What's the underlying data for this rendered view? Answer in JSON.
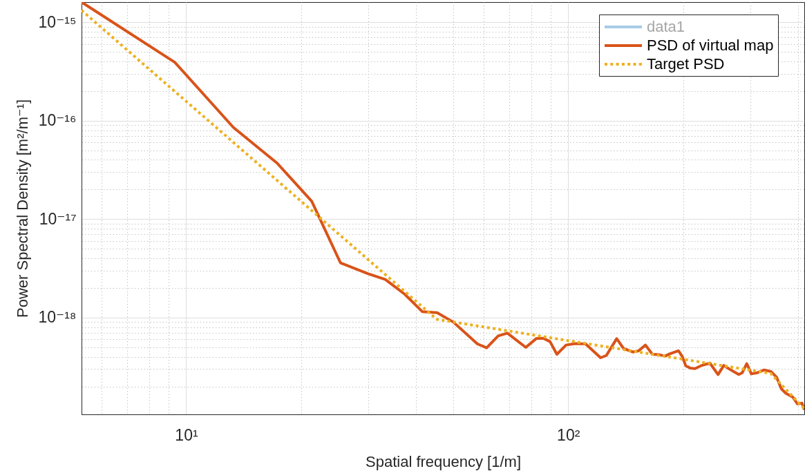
{
  "chart_data": {
    "type": "line",
    "xlabel": "Spatial frequency [1/m]",
    "ylabel": "Power Spectral Density [m²/m⁻¹]",
    "log": "xy",
    "grid": true,
    "legend": "top right",
    "xlim": [
      5.32,
      415.3
    ],
    "ylim": [
      1.04e-19,
      1.6e-15
    ],
    "xticks": [
      {
        "value": 6,
        "label": null
      },
      {
        "value": 7,
        "label": null
      },
      {
        "value": 8,
        "label": null
      },
      {
        "value": 9,
        "label": null
      },
      {
        "value": 10,
        "label": "10¹"
      },
      {
        "value": 20,
        "label": null
      },
      {
        "value": 30,
        "label": null
      },
      {
        "value": 40,
        "label": null
      },
      {
        "value": 50,
        "label": null
      },
      {
        "value": 60,
        "label": null
      },
      {
        "value": 70,
        "label": null
      },
      {
        "value": 80,
        "label": null
      },
      {
        "value": 90,
        "label": null
      },
      {
        "value": 100,
        "label": "10²"
      },
      {
        "value": 200,
        "label": null
      },
      {
        "value": 300,
        "label": null
      },
      {
        "value": 400,
        "label": null
      }
    ],
    "yticks": [
      {
        "value": 2e-19,
        "label": null
      },
      {
        "value": 3e-19,
        "label": null
      },
      {
        "value": 4e-19,
        "label": null
      },
      {
        "value": 5e-19,
        "label": null
      },
      {
        "value": 6e-19,
        "label": null
      },
      {
        "value": 7e-19,
        "label": null
      },
      {
        "value": 8e-19,
        "label": null
      },
      {
        "value": 9e-19,
        "label": null
      },
      {
        "value": 1e-18,
        "label": "10⁻¹⁸"
      },
      {
        "value": 2e-18,
        "label": null
      },
      {
        "value": 3e-18,
        "label": null
      },
      {
        "value": 4e-18,
        "label": null
      },
      {
        "value": 5e-18,
        "label": null
      },
      {
        "value": 6e-18,
        "label": null
      },
      {
        "value": 7e-18,
        "label": null
      },
      {
        "value": 8e-18,
        "label": null
      },
      {
        "value": 9e-18,
        "label": null
      },
      {
        "value": 1e-17,
        "label": "10⁻¹⁷"
      },
      {
        "value": 2e-17,
        "label": null
      },
      {
        "value": 3e-17,
        "label": null
      },
      {
        "value": 4e-17,
        "label": null
      },
      {
        "value": 5e-17,
        "label": null
      },
      {
        "value": 6e-17,
        "label": null
      },
      {
        "value": 7e-17,
        "label": null
      },
      {
        "value": 8e-17,
        "label": null
      },
      {
        "value": 9e-17,
        "label": null
      },
      {
        "value": 1e-16,
        "label": "10⁻¹⁶"
      },
      {
        "value": 2e-16,
        "label": null
      },
      {
        "value": 3e-16,
        "label": null
      },
      {
        "value": 4e-16,
        "label": null
      },
      {
        "value": 5e-16,
        "label": null
      },
      {
        "value": 6e-16,
        "label": null
      },
      {
        "value": 7e-16,
        "label": null
      },
      {
        "value": 8e-16,
        "label": null
      },
      {
        "value": 9e-16,
        "label": null
      },
      {
        "value": 1e-15,
        "label": "10⁻¹⁵"
      }
    ],
    "series": [
      {
        "name": "data1",
        "color": "#a6cbe6",
        "line_style": "solid"
      },
      {
        "name": "PSD of virtual map",
        "color": "#d95319",
        "line_style": "solid",
        "x": [
          5.32,
          9.33,
          13.29,
          17.3,
          21.31,
          25.34,
          29.94,
          33.21,
          37.38,
          41.49,
          45.39,
          50.04,
          57.88,
          61.18,
          65.58,
          69.33,
          77.47,
          82.46,
          86.0,
          89.65,
          93.43,
          98.76,
          104.4,
          111.1,
          121.6,
          125.9,
          134.0,
          139.7,
          147.7,
          152.9,
          159.4,
          166.2,
          173.3,
          179.3,
          184.5,
          194.5,
          199.1,
          203.2,
          208.9,
          214.8,
          224.0,
          235.0,
          246.9,
          255.6,
          264.7,
          279.7,
          285.6,
          293.6,
          301.8,
          312.5,
          325.8,
          339.7,
          351.6,
          361.6,
          371.7,
          387.4,
          398.4,
          409.6,
          415.3
        ],
        "values": [
          1.6e-15,
          3.92e-16,
          8.53e-17,
          3.7e-17,
          1.52e-17,
          3.6e-18,
          2.79e-18,
          2.44e-18,
          1.72e-18,
          1.15e-18,
          1.12e-18,
          9e-19,
          5.4e-19,
          4.93e-19,
          6.52e-19,
          6.95e-19,
          4.98e-19,
          6.11e-19,
          6.18e-19,
          5.7e-19,
          4.24e-19,
          5.26e-19,
          5.44e-19,
          5.4e-19,
          3.91e-19,
          4.12e-19,
          6.11e-19,
          4.85e-19,
          4.47e-19,
          4.6e-19,
          5.26e-19,
          4.24e-19,
          4.2e-19,
          4.06e-19,
          4.28e-19,
          4.6e-19,
          4.01e-19,
          3.24e-19,
          3.07e-19,
          3.03e-19,
          3.27e-19,
          3.45e-19,
          2.64e-19,
          3.27e-19,
          2.99e-19,
          2.64e-19,
          2.75e-19,
          3.41e-19,
          2.68e-19,
          2.75e-19,
          2.94e-19,
          2.83e-19,
          2.47e-19,
          1.89e-19,
          1.7e-19,
          1.56e-19,
          1.33e-19,
          1.35e-19,
          1.16e-19
        ]
      },
      {
        "name": "Target PSD",
        "color": "#edb120",
        "line_style": "dotted",
        "x": [
          5.32,
          45.3,
          339,
          415.3
        ],
        "values": [
          1.32e-15,
          9.6e-19,
          2.71e-19,
          1.19e-19
        ]
      }
    ]
  }
}
